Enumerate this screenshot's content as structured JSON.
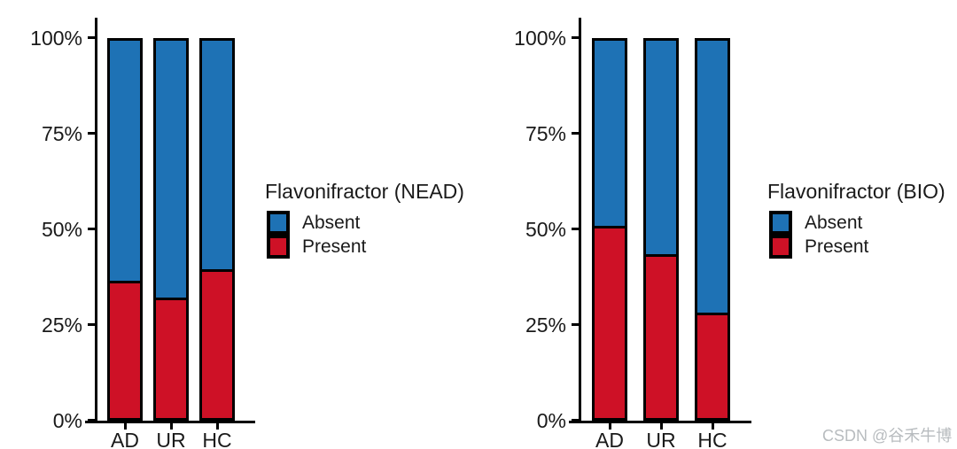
{
  "watermark": {
    "text": "CSDN @谷禾牛博"
  },
  "colors": {
    "absent_blue": "#1e72b5",
    "present_red": "#ce1126",
    "outline_black": "#000000",
    "text": "#1a1a1a",
    "watermark_gray": "#b8bcbf"
  },
  "chart_data": [
    {
      "type": "bar",
      "stacked": true,
      "orientation": "vertical",
      "title": "Flavonifractor (NEAD)",
      "categories": [
        "AD",
        "UR",
        "HC"
      ],
      "xlabel": "",
      "ylabel": "",
      "ylim": [
        0,
        100
      ],
      "y_tick_labels": [
        "100%",
        "75%",
        "50%",
        "25%",
        "0%"
      ],
      "grid": false,
      "legend_position": "right",
      "legend": {
        "entries": [
          {
            "label": "Absent",
            "color": "#1e72b5"
          },
          {
            "label": "Present",
            "color": "#ce1126"
          }
        ]
      },
      "series": [
        {
          "name": "Absent",
          "values": [
            63.5,
            68,
            60.5
          ]
        },
        {
          "name": "Present",
          "values": [
            36.5,
            32,
            39.5
          ]
        }
      ]
    },
    {
      "type": "bar",
      "stacked": true,
      "orientation": "vertical",
      "title": "Flavonifractor (BIO)",
      "categories": [
        "AD",
        "UR",
        "HC"
      ],
      "xlabel": "",
      "ylabel": "",
      "ylim": [
        0,
        100
      ],
      "y_tick_labels": [
        "100%",
        "75%",
        "50%",
        "25%",
        "0%"
      ],
      "grid": false,
      "legend_position": "right",
      "legend": {
        "entries": [
          {
            "label": "Absent",
            "color": "#1e72b5"
          },
          {
            "label": "Present",
            "color": "#ce1126"
          }
        ]
      },
      "series": [
        {
          "name": "Absent",
          "values": [
            49,
            56.5,
            72
          ]
        },
        {
          "name": "Present",
          "values": [
            51,
            43.5,
            28
          ]
        }
      ]
    }
  ]
}
